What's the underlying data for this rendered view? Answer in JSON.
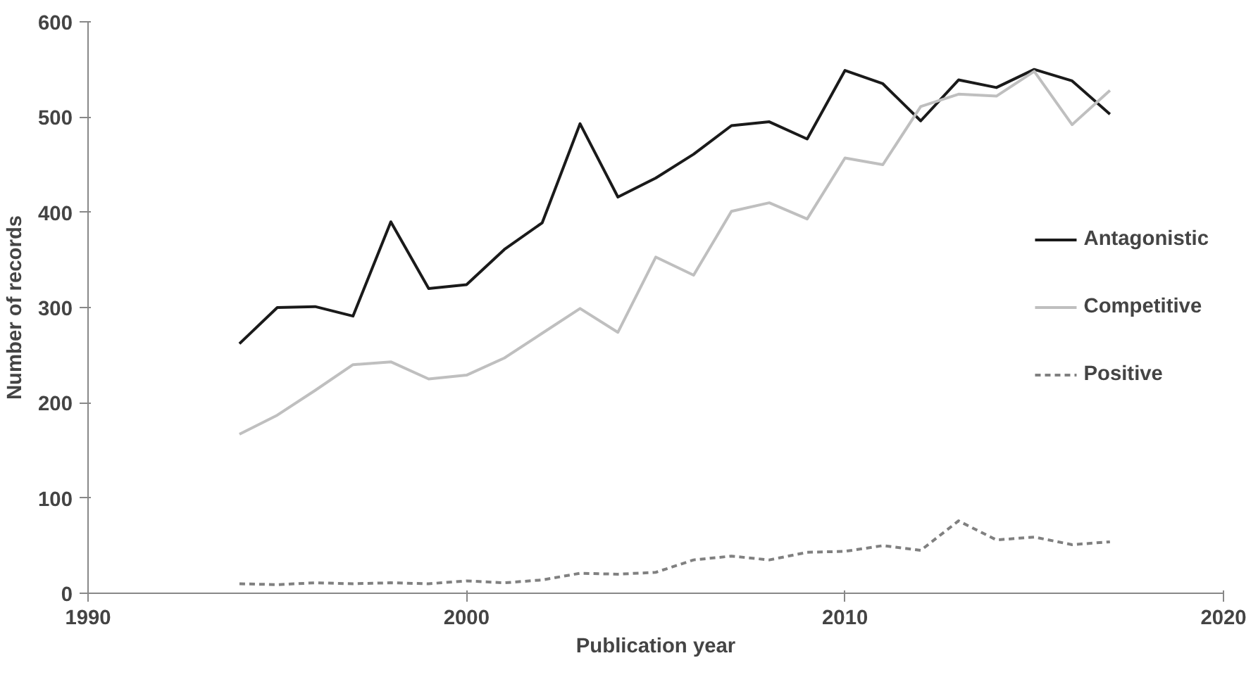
{
  "chart_data": {
    "type": "line",
    "xlabel": "Publication year",
    "ylabel": "Number of records",
    "x": [
      1994,
      1995,
      1996,
      1997,
      1998,
      1999,
      2000,
      2001,
      2002,
      2003,
      2004,
      2005,
      2006,
      2007,
      2008,
      2009,
      2010,
      2011,
      2012,
      2013,
      2014,
      2015,
      2016,
      2017
    ],
    "series": [
      {
        "name": "Antagonistic",
        "color": "#1a1a1a",
        "line_style": "solid",
        "values": [
          262,
          300,
          301,
          291,
          390,
          320,
          324,
          361,
          389,
          493,
          416,
          436,
          461,
          491,
          495,
          477,
          549,
          535,
          496,
          539,
          531,
          550,
          538,
          503
        ]
      },
      {
        "name": "Competitive",
        "color": "#bfbfbf",
        "line_style": "solid",
        "values": [
          167,
          187,
          213,
          240,
          243,
          225,
          229,
          247,
          273,
          299,
          274,
          353,
          334,
          401,
          410,
          393,
          457,
          450,
          511,
          524,
          522,
          548,
          492,
          528
        ]
      },
      {
        "name": "Positive",
        "color": "#808080",
        "line_style": "dashed",
        "values": [
          10,
          9,
          11,
          10,
          11,
          10,
          13,
          11,
          14,
          21,
          20,
          22,
          35,
          39,
          35,
          43,
          44,
          50,
          45,
          76,
          56,
          59,
          51,
          54
        ]
      }
    ],
    "xlim": [
      1990,
      2020
    ],
    "xticks": [
      1990,
      2000,
      2010,
      2020
    ],
    "ylim": [
      0,
      600
    ],
    "yticks": [
      0,
      100,
      200,
      300,
      400,
      500,
      600
    ],
    "grid": false,
    "legend": "right"
  }
}
